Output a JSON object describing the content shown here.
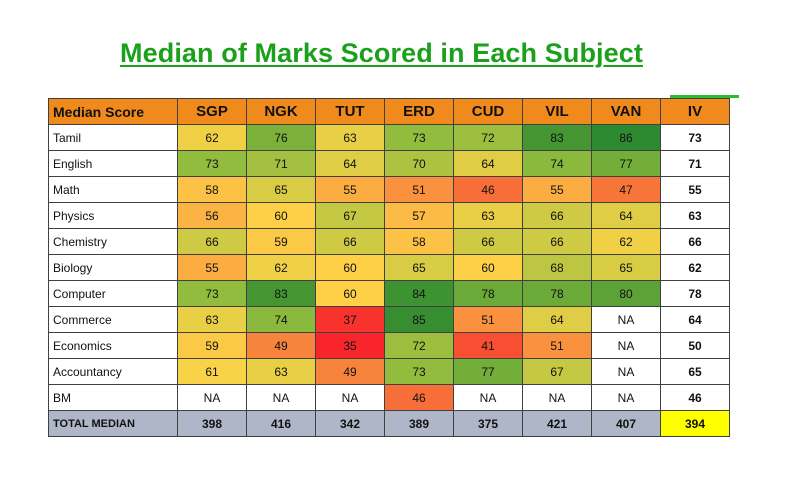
{
  "chart_data": {
    "type": "table",
    "title": "Median of Marks Scored in Each Subject",
    "corner_label": "Median Score",
    "columns": [
      "SGP",
      "NGK",
      "TUT",
      "ERD",
      "CUD",
      "VIL",
      "VAN",
      "IV"
    ],
    "rows": [
      {
        "subject": "Tamil",
        "values": [
          "62",
          "76",
          "63",
          "73",
          "72",
          "83",
          "86",
          "73"
        ]
      },
      {
        "subject": "English",
        "values": [
          "73",
          "71",
          "64",
          "70",
          "64",
          "74",
          "77",
          "71"
        ]
      },
      {
        "subject": "Math",
        "values": [
          "58",
          "65",
          "55",
          "51",
          "46",
          "55",
          "47",
          "55"
        ]
      },
      {
        "subject": "Physics",
        "values": [
          "56",
          "60",
          "67",
          "57",
          "63",
          "66",
          "64",
          "63"
        ]
      },
      {
        "subject": "Chemistry",
        "values": [
          "66",
          "59",
          "66",
          "58",
          "66",
          "66",
          "62",
          "66"
        ]
      },
      {
        "subject": "Biology",
        "values": [
          "55",
          "62",
          "60",
          "65",
          "60",
          "68",
          "65",
          "62"
        ]
      },
      {
        "subject": "Computer",
        "values": [
          "73",
          "83",
          "60",
          "84",
          "78",
          "78",
          "80",
          "78"
        ]
      },
      {
        "subject": "Commerce",
        "values": [
          "63",
          "74",
          "37",
          "85",
          "51",
          "64",
          "NA",
          "64"
        ]
      },
      {
        "subject": "Economics",
        "values": [
          "59",
          "49",
          "35",
          "72",
          "41",
          "51",
          "NA",
          "50"
        ]
      },
      {
        "subject": "Accountancy",
        "values": [
          "61",
          "63",
          "49",
          "73",
          "77",
          "67",
          "NA",
          "65"
        ]
      },
      {
        "subject": "BM",
        "values": [
          "NA",
          "NA",
          "NA",
          "46",
          "NA",
          "NA",
          "NA",
          "46"
        ]
      }
    ],
    "total": {
      "label": "TOTAL MEDIAN",
      "values": [
        "398",
        "416",
        "342",
        "389",
        "375",
        "421",
        "407",
        "394"
      ]
    },
    "color_scale": {
      "min": 35,
      "max": 86,
      "stops": [
        "#f8262a",
        "#f87a3b",
        "#fdd447",
        "#90bc3e",
        "#2e8a30"
      ]
    },
    "header_color": "#f08a1c",
    "total_row_color": "#aeb6c8",
    "highlight_color": "#ffff00"
  }
}
